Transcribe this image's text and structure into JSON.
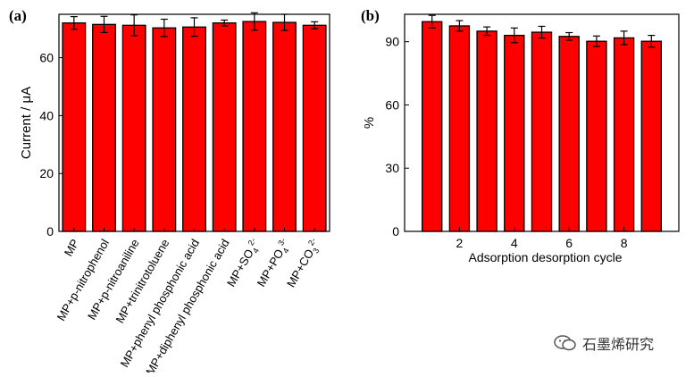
{
  "panel_a_label": "(a)",
  "panel_b_label": "(b)",
  "watermark_text": "石墨烯研究",
  "chart_data": [
    {
      "type": "bar",
      "ylabel": "Current / μA",
      "xlabel": "",
      "ylim": [
        0,
        75
      ],
      "yticks": [
        0,
        20,
        40,
        60
      ],
      "bar_color": "#ff0000",
      "categories": [
        {
          "label": "MP"
        },
        {
          "label": "MP+p-nitrophenol"
        },
        {
          "label": "MP+p-nitroaniline"
        },
        {
          "label": "MP+trinitrotoluene"
        },
        {
          "label": "MP+phenyl phosphonic acid"
        },
        {
          "label": "MP+diphenyl phosphonic acid"
        },
        {
          "label": "MP+SO",
          "sub": "4",
          "sup": "2-"
        },
        {
          "label": "MP+PO",
          "sub": "4",
          "sup": "3-"
        },
        {
          "label": "MP+CO",
          "sub": "3",
          "sup": "2-"
        }
      ],
      "values": [
        72,
        71.5,
        71.2,
        70.3,
        70.6,
        72,
        72.5,
        72.2,
        71.2
      ],
      "errors": [
        2.2,
        2.8,
        3.6,
        3.0,
        3.2,
        1.0,
        3.0,
        2.8,
        1.2
      ]
    },
    {
      "type": "bar",
      "ylabel": "%",
      "xlabel": "Adsorption desorption cycle",
      "xlim": [
        0,
        10
      ],
      "xticks": [
        2,
        4,
        6,
        8
      ],
      "ylim": [
        0,
        103
      ],
      "yticks": [
        0,
        30,
        60,
        90
      ],
      "bar_color": "#ff0000",
      "x": [
        1,
        2,
        3,
        4,
        5,
        6,
        7,
        8,
        9
      ],
      "values": [
        99.5,
        97.5,
        95,
        93,
        94.5,
        92.5,
        90.2,
        91.8,
        90.2
      ],
      "errors": [
        3.0,
        2.5,
        2.0,
        3.5,
        2.8,
        1.8,
        2.5,
        3.2,
        2.8
      ]
    }
  ]
}
